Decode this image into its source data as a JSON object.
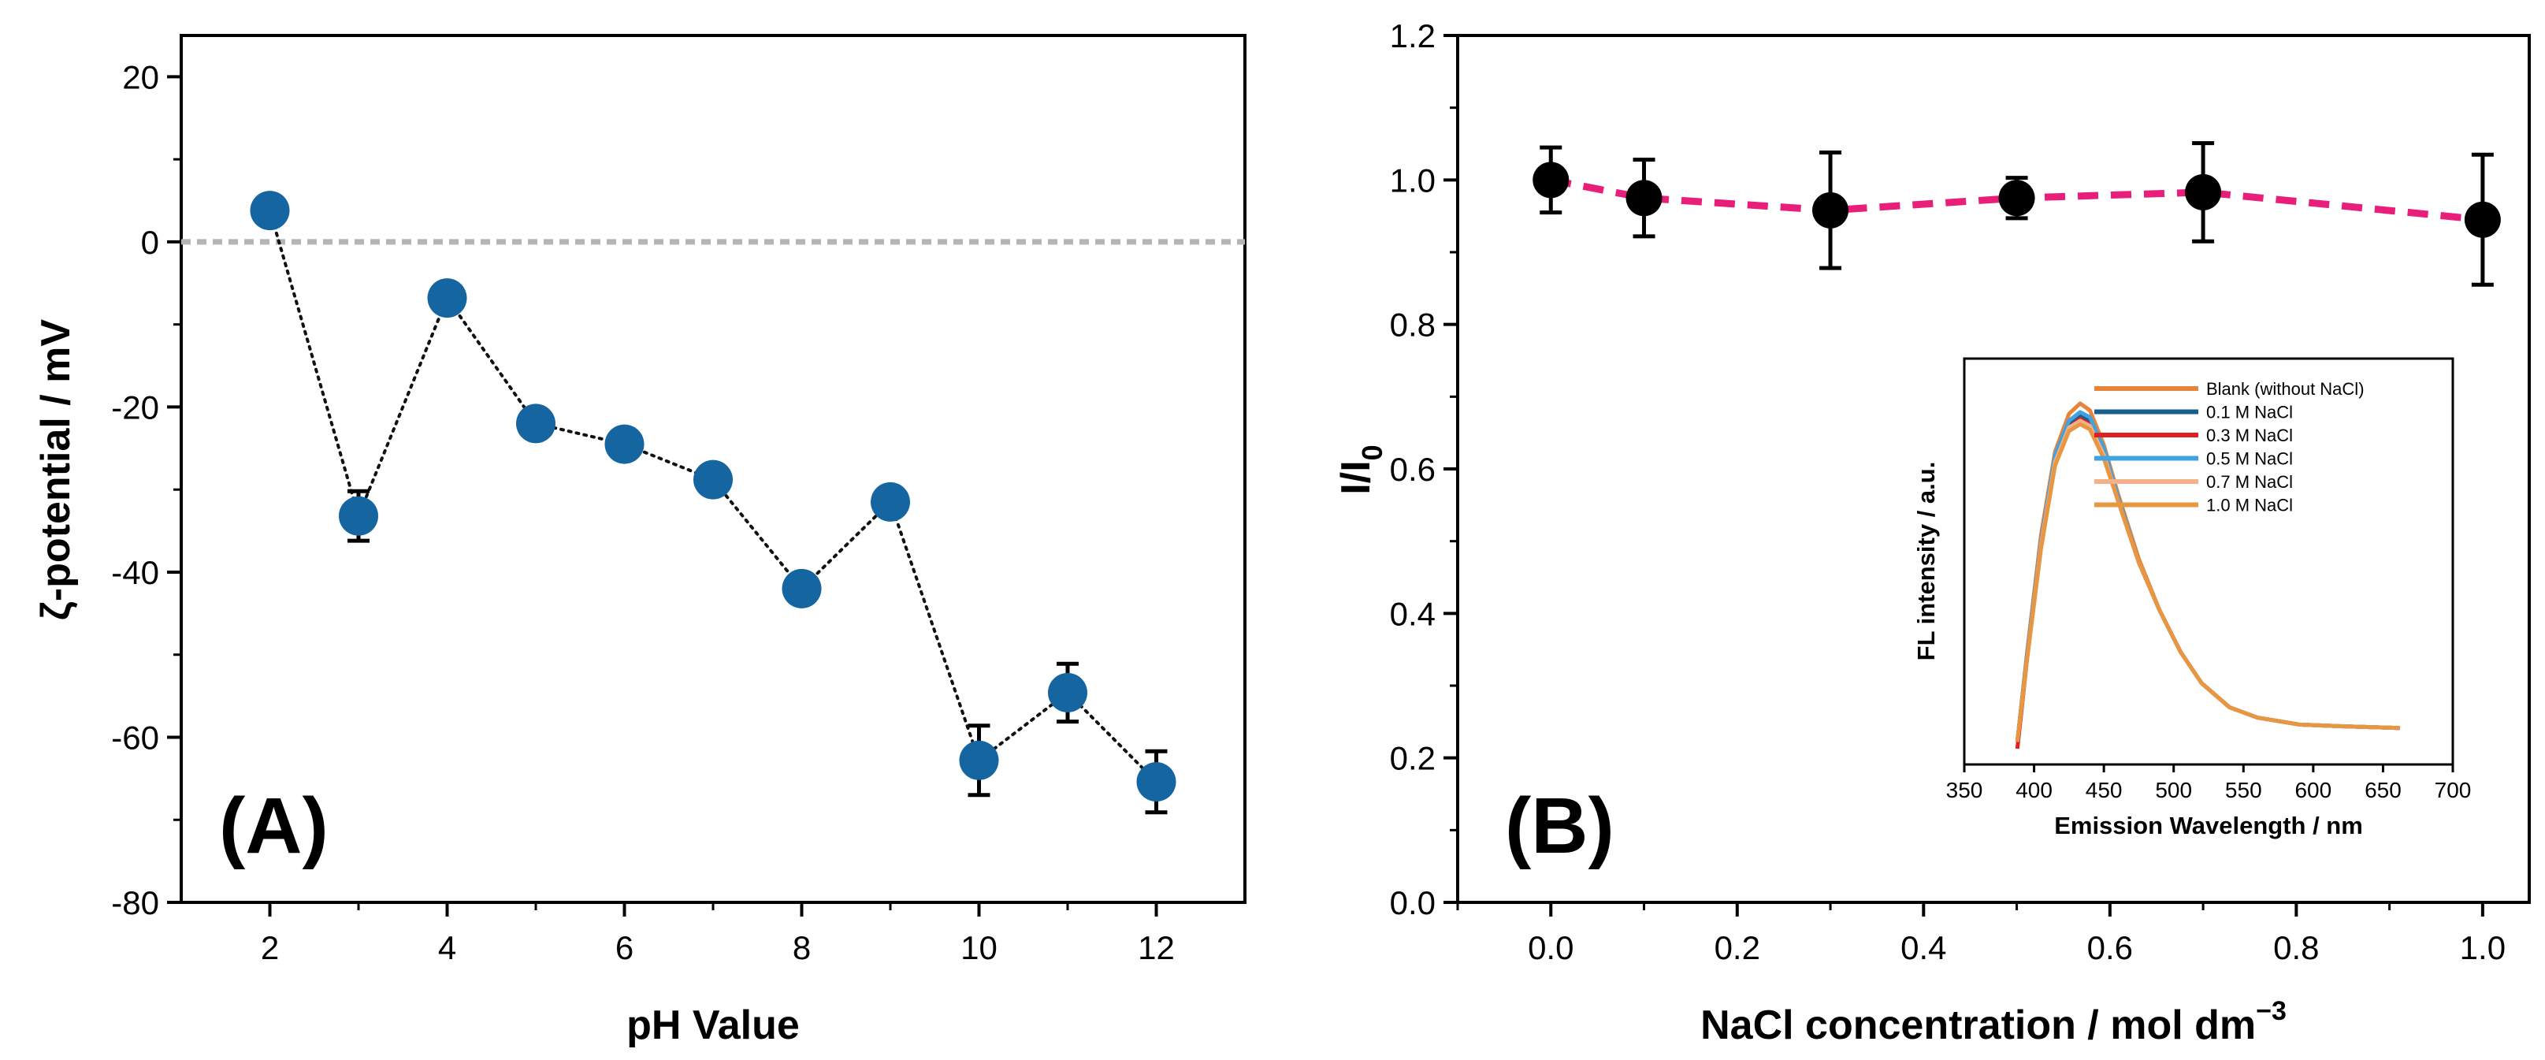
{
  "chart_data": [
    {
      "type": "scatter",
      "panel_label": "(A)",
      "xlabel": "pH Value",
      "ylabel": "ζ-potential / mV",
      "xlim": [
        1,
        13
      ],
      "ylim": [
        -80,
        25
      ],
      "xticks": [
        "2",
        "4",
        "6",
        "8",
        "10",
        "12"
      ],
      "yticks": [
        "20",
        "0",
        "-20",
        "-40",
        "-60",
        "-80"
      ],
      "reference_line": 0,
      "marker_color": "#1565a0",
      "line_style": "dotted",
      "x": [
        2,
        3,
        4,
        5,
        6,
        7,
        8,
        9,
        10,
        11,
        12
      ],
      "y": [
        3.8,
        -33.2,
        -6.8,
        -22.0,
        -24.5,
        -28.8,
        -42.0,
        -31.5,
        -62.8,
        -54.6,
        -65.4
      ],
      "err": [
        1.0,
        3.0,
        1.0,
        1.0,
        1.0,
        1.0,
        1.0,
        1.5,
        4.2,
        3.5,
        3.7
      ]
    },
    {
      "type": "scatter",
      "panel_label": "(B)",
      "xlabel": "NaCl concentration / mol dm",
      "xlabel_sup": "−3",
      "ylabel": "I/I",
      "ylabel_sub": "0",
      "xlim": [
        -0.1,
        1.05
      ],
      "ylim": [
        0.0,
        1.2
      ],
      "xticks": [
        "0.0",
        "0.2",
        "0.4",
        "0.6",
        "0.8",
        "1.0"
      ],
      "yticks": [
        "0.0",
        "0.2",
        "0.4",
        "0.6",
        "0.8",
        "1.0",
        "1.2"
      ],
      "marker_color": "#000000",
      "line_color": "#e91e7a",
      "line_style": "dashed",
      "x": [
        0.0,
        0.1,
        0.3,
        0.5,
        0.7,
        1.0
      ],
      "y": [
        1.0,
        0.975,
        0.958,
        0.975,
        0.983,
        0.945
      ],
      "err": [
        0.045,
        0.053,
        0.08,
        0.028,
        0.068,
        0.09
      ]
    },
    {
      "type": "line",
      "panel_label": "inset",
      "xlabel": "Emission Wavelength / nm",
      "ylabel": "FL intensity / a.u.",
      "xlim": [
        350,
        700
      ],
      "xticks": [
        "350",
        "400",
        "450",
        "500",
        "550",
        "600",
        "650",
        "700"
      ],
      "x": [
        388,
        395,
        405,
        415,
        425,
        433,
        440,
        450,
        460,
        475,
        490,
        505,
        520,
        540,
        560,
        590,
        620,
        662
      ],
      "series": [
        {
          "name": "Blank (without NaCl)",
          "color": "#e8833a",
          "values": [
            0.02,
            0.28,
            0.62,
            0.86,
            0.97,
            1.0,
            0.98,
            0.88,
            0.74,
            0.55,
            0.4,
            0.28,
            0.19,
            0.12,
            0.09,
            0.07,
            0.065,
            0.06
          ]
        },
        {
          "name": "0.1 M NaCl",
          "color": "#1a5e8f",
          "values": [
            0.02,
            0.27,
            0.6,
            0.84,
            0.94,
            0.965,
            0.95,
            0.86,
            0.73,
            0.54,
            0.4,
            0.28,
            0.19,
            0.12,
            0.09,
            0.07,
            0.065,
            0.06
          ]
        },
        {
          "name": "0.3 M NaCl",
          "color": "#e02020",
          "values": [
            0.0,
            0.26,
            0.59,
            0.83,
            0.93,
            0.955,
            0.94,
            0.85,
            0.72,
            0.54,
            0.4,
            0.28,
            0.19,
            0.12,
            0.09,
            0.07,
            0.065,
            0.06
          ]
        },
        {
          "name": "0.5 M NaCl",
          "color": "#3ea3e0",
          "values": [
            0.02,
            0.27,
            0.6,
            0.85,
            0.95,
            0.975,
            0.96,
            0.87,
            0.73,
            0.54,
            0.4,
            0.28,
            0.19,
            0.12,
            0.09,
            0.07,
            0.065,
            0.06
          ]
        },
        {
          "name": "0.7 M NaCl",
          "color": "#f4b08a",
          "values": [
            0.02,
            0.26,
            0.59,
            0.83,
            0.93,
            0.95,
            0.935,
            0.85,
            0.72,
            0.54,
            0.4,
            0.28,
            0.19,
            0.12,
            0.09,
            0.07,
            0.065,
            0.06
          ]
        },
        {
          "name": "1.0 M NaCl",
          "color": "#e89640",
          "values": [
            0.02,
            0.26,
            0.58,
            0.82,
            0.92,
            0.94,
            0.925,
            0.84,
            0.72,
            0.54,
            0.4,
            0.28,
            0.19,
            0.12,
            0.09,
            0.07,
            0.065,
            0.06
          ]
        }
      ]
    }
  ]
}
